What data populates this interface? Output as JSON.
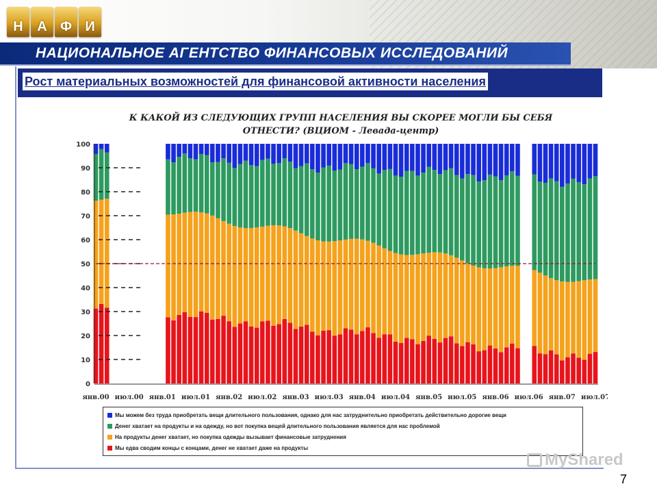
{
  "header": {
    "logo_letters": [
      "Н",
      "А",
      "Ф",
      "И"
    ],
    "agency_title": "НАЦИОНАЛЬНОЕ АГЕНТСТВО ФИНАНСОВЫХ ИССЛЕДОВАНИЙ"
  },
  "slide": {
    "subtitle": "Рост материальных возможностей для финансовой активности населения",
    "page_number": "7",
    "watermark": "MyShared"
  },
  "colors": {
    "red": "#e8141c",
    "orange": "#f5a21c",
    "green": "#2e9a60",
    "blue": "#1a2cd8",
    "header_blue": "#173b96",
    "dashed": "#222222",
    "midline": "#8a2030"
  },
  "chart_data": {
    "type": "bar",
    "stacked": true,
    "title": "К КАКОЙ ИЗ СЛЕДУЮЩИХ ГРУПП НАСЕЛЕНИЯ ВЫ СКОРЕЕ МОГЛИ БЫ СЕБЯ ОТНЕСТИ? (ВЦИОМ - Левада-центр)",
    "ylim": [
      0,
      100
    ],
    "y_ticks": [
      0,
      10,
      20,
      30,
      40,
      50,
      60,
      70,
      80,
      90,
      100
    ],
    "x_ticks": [
      "янв.00",
      "июл.00",
      "янв.01",
      "июл.01",
      "янв.02",
      "июл.02",
      "янв.03",
      "июл.03",
      "янв.04",
      "июл.04",
      "янв.05",
      "июл.05",
      "янв.06",
      "июл.06",
      "янв.07",
      "июл.07"
    ],
    "reference_line": 50,
    "series": [
      {
        "name": "Мы едва сводим концы с концами, денег не хватает даже на продукты",
        "color": "#e8141c",
        "start": 32,
        "end": 11
      },
      {
        "name": "На продукты денег хватает, но покупка одежды вызывает финансовые затруднения",
        "color": "#f5a21c",
        "start": 45,
        "end": 31
      },
      {
        "name": "Денег хватает на продукты и на одежду, но вот покупка вещей длительного пользования является для нас проблемой",
        "color": "#2e9a60",
        "start": 19,
        "end": 42
      },
      {
        "name": "Мы можем без труда приобретать вещи длительного пользования, однако для нас затруднительно приобретать действительно дорогие вещи",
        "color": "#1a2cd8",
        "start": 4,
        "end": 16
      }
    ],
    "legend": [
      {
        "label": "Мы можем без труда приобретать вещи длительного пользования, однако для нас затруднительно приобретать действительно дорогие вещи",
        "color": "#1a2cd8"
      },
      {
        "label": "Денег хватает на продукты и на одежду, но вот покупка вещей длительного пользования является для нас проблемой",
        "color": "#2e9a60"
      },
      {
        "label": "На продукты денег хватает, но покупка одежды вызывает финансовые затруднения",
        "color": "#f5a21c"
      },
      {
        "label": "Мы едва сводим концы с концами, денег не хватает даже на продукты",
        "color": "#e8141c"
      }
    ]
  }
}
